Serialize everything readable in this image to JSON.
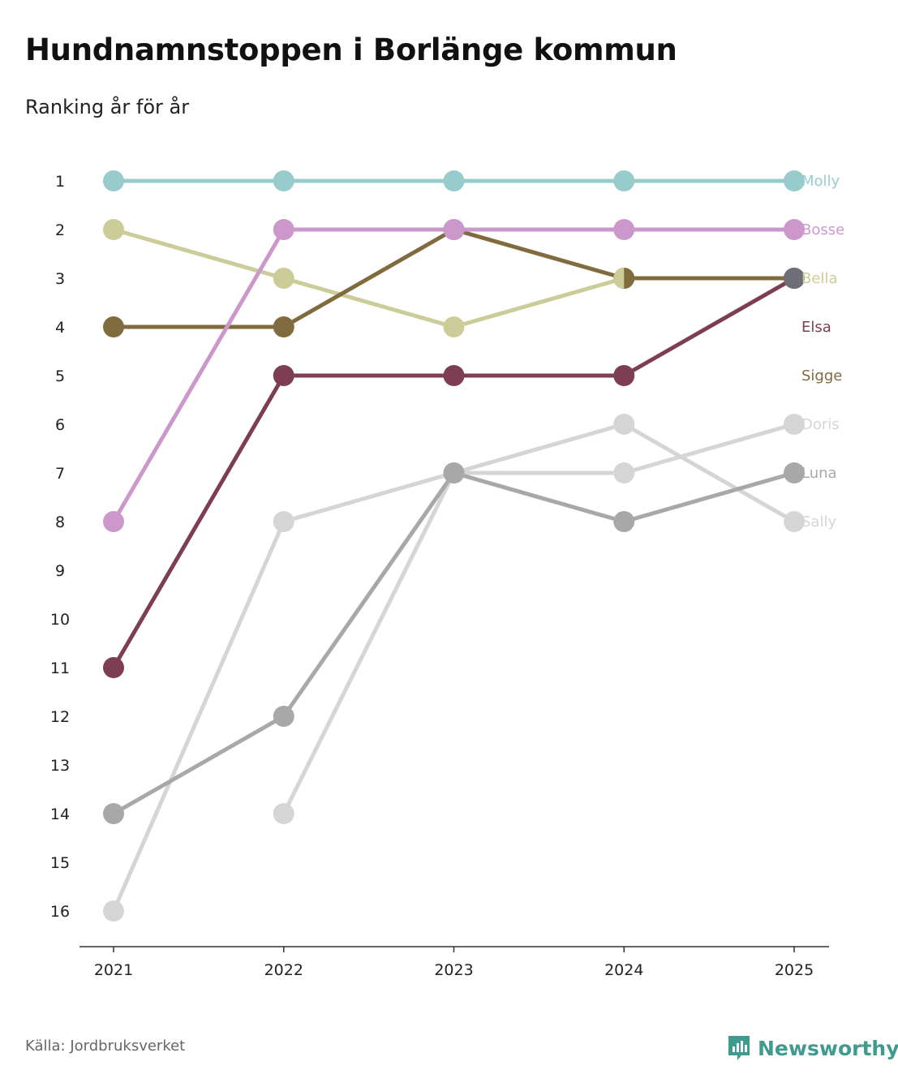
{
  "title": "Hundnamnstoppen i Borlänge kommun",
  "subtitle": "Ranking år för år",
  "source": "Källa: Jordbruksverket",
  "brand": "Newsworthy",
  "brand_color": "#3f9b8f",
  "chart_data": {
    "type": "line",
    "title": "Hundnamnstoppen i Borlänge kommun",
    "subtitle": "Ranking år för år",
    "xlabel": "",
    "ylabel": "",
    "categories": [
      "2021",
      "2022",
      "2023",
      "2024",
      "2025"
    ],
    "y_ticks": [
      "1",
      "2",
      "3",
      "4",
      "5",
      "6",
      "7",
      "8",
      "9",
      "10",
      "11",
      "12",
      "13",
      "14",
      "15",
      "16"
    ],
    "ylim": [
      1,
      16
    ],
    "y_inverted": true,
    "series": [
      {
        "name": "Sally",
        "color": "#d5d5d5",
        "values": [
          null,
          14,
          7,
          6,
          8
        ]
      },
      {
        "name": "Doris",
        "color": "#d5d5d5",
        "values": [
          16,
          8,
          7,
          7,
          6
        ]
      },
      {
        "name": "Luna",
        "color": "#a8a8a8",
        "values": [
          14,
          12,
          7,
          8,
          7
        ]
      },
      {
        "name": "Elsa",
        "color": "#7d3e54",
        "values": [
          11,
          5,
          5,
          5,
          3
        ]
      },
      {
        "name": "Bella",
        "color": "#cccc98",
        "values": [
          2,
          3,
          4,
          3,
          3
        ]
      },
      {
        "name": "Sigge",
        "color": "#7f6b3e",
        "values": [
          4,
          4,
          2,
          3,
          3
        ]
      },
      {
        "name": "Bosse",
        "color": "#cc98cc",
        "values": [
          8,
          2,
          2,
          2,
          2
        ]
      },
      {
        "name": "Molly",
        "color": "#98cccc",
        "values": [
          1,
          1,
          1,
          1,
          1
        ]
      }
    ],
    "end_labels": [
      "Molly",
      "Bosse",
      "Bella",
      "Elsa",
      "Sigge",
      "Doris",
      "Luna",
      "Sally"
    ]
  }
}
